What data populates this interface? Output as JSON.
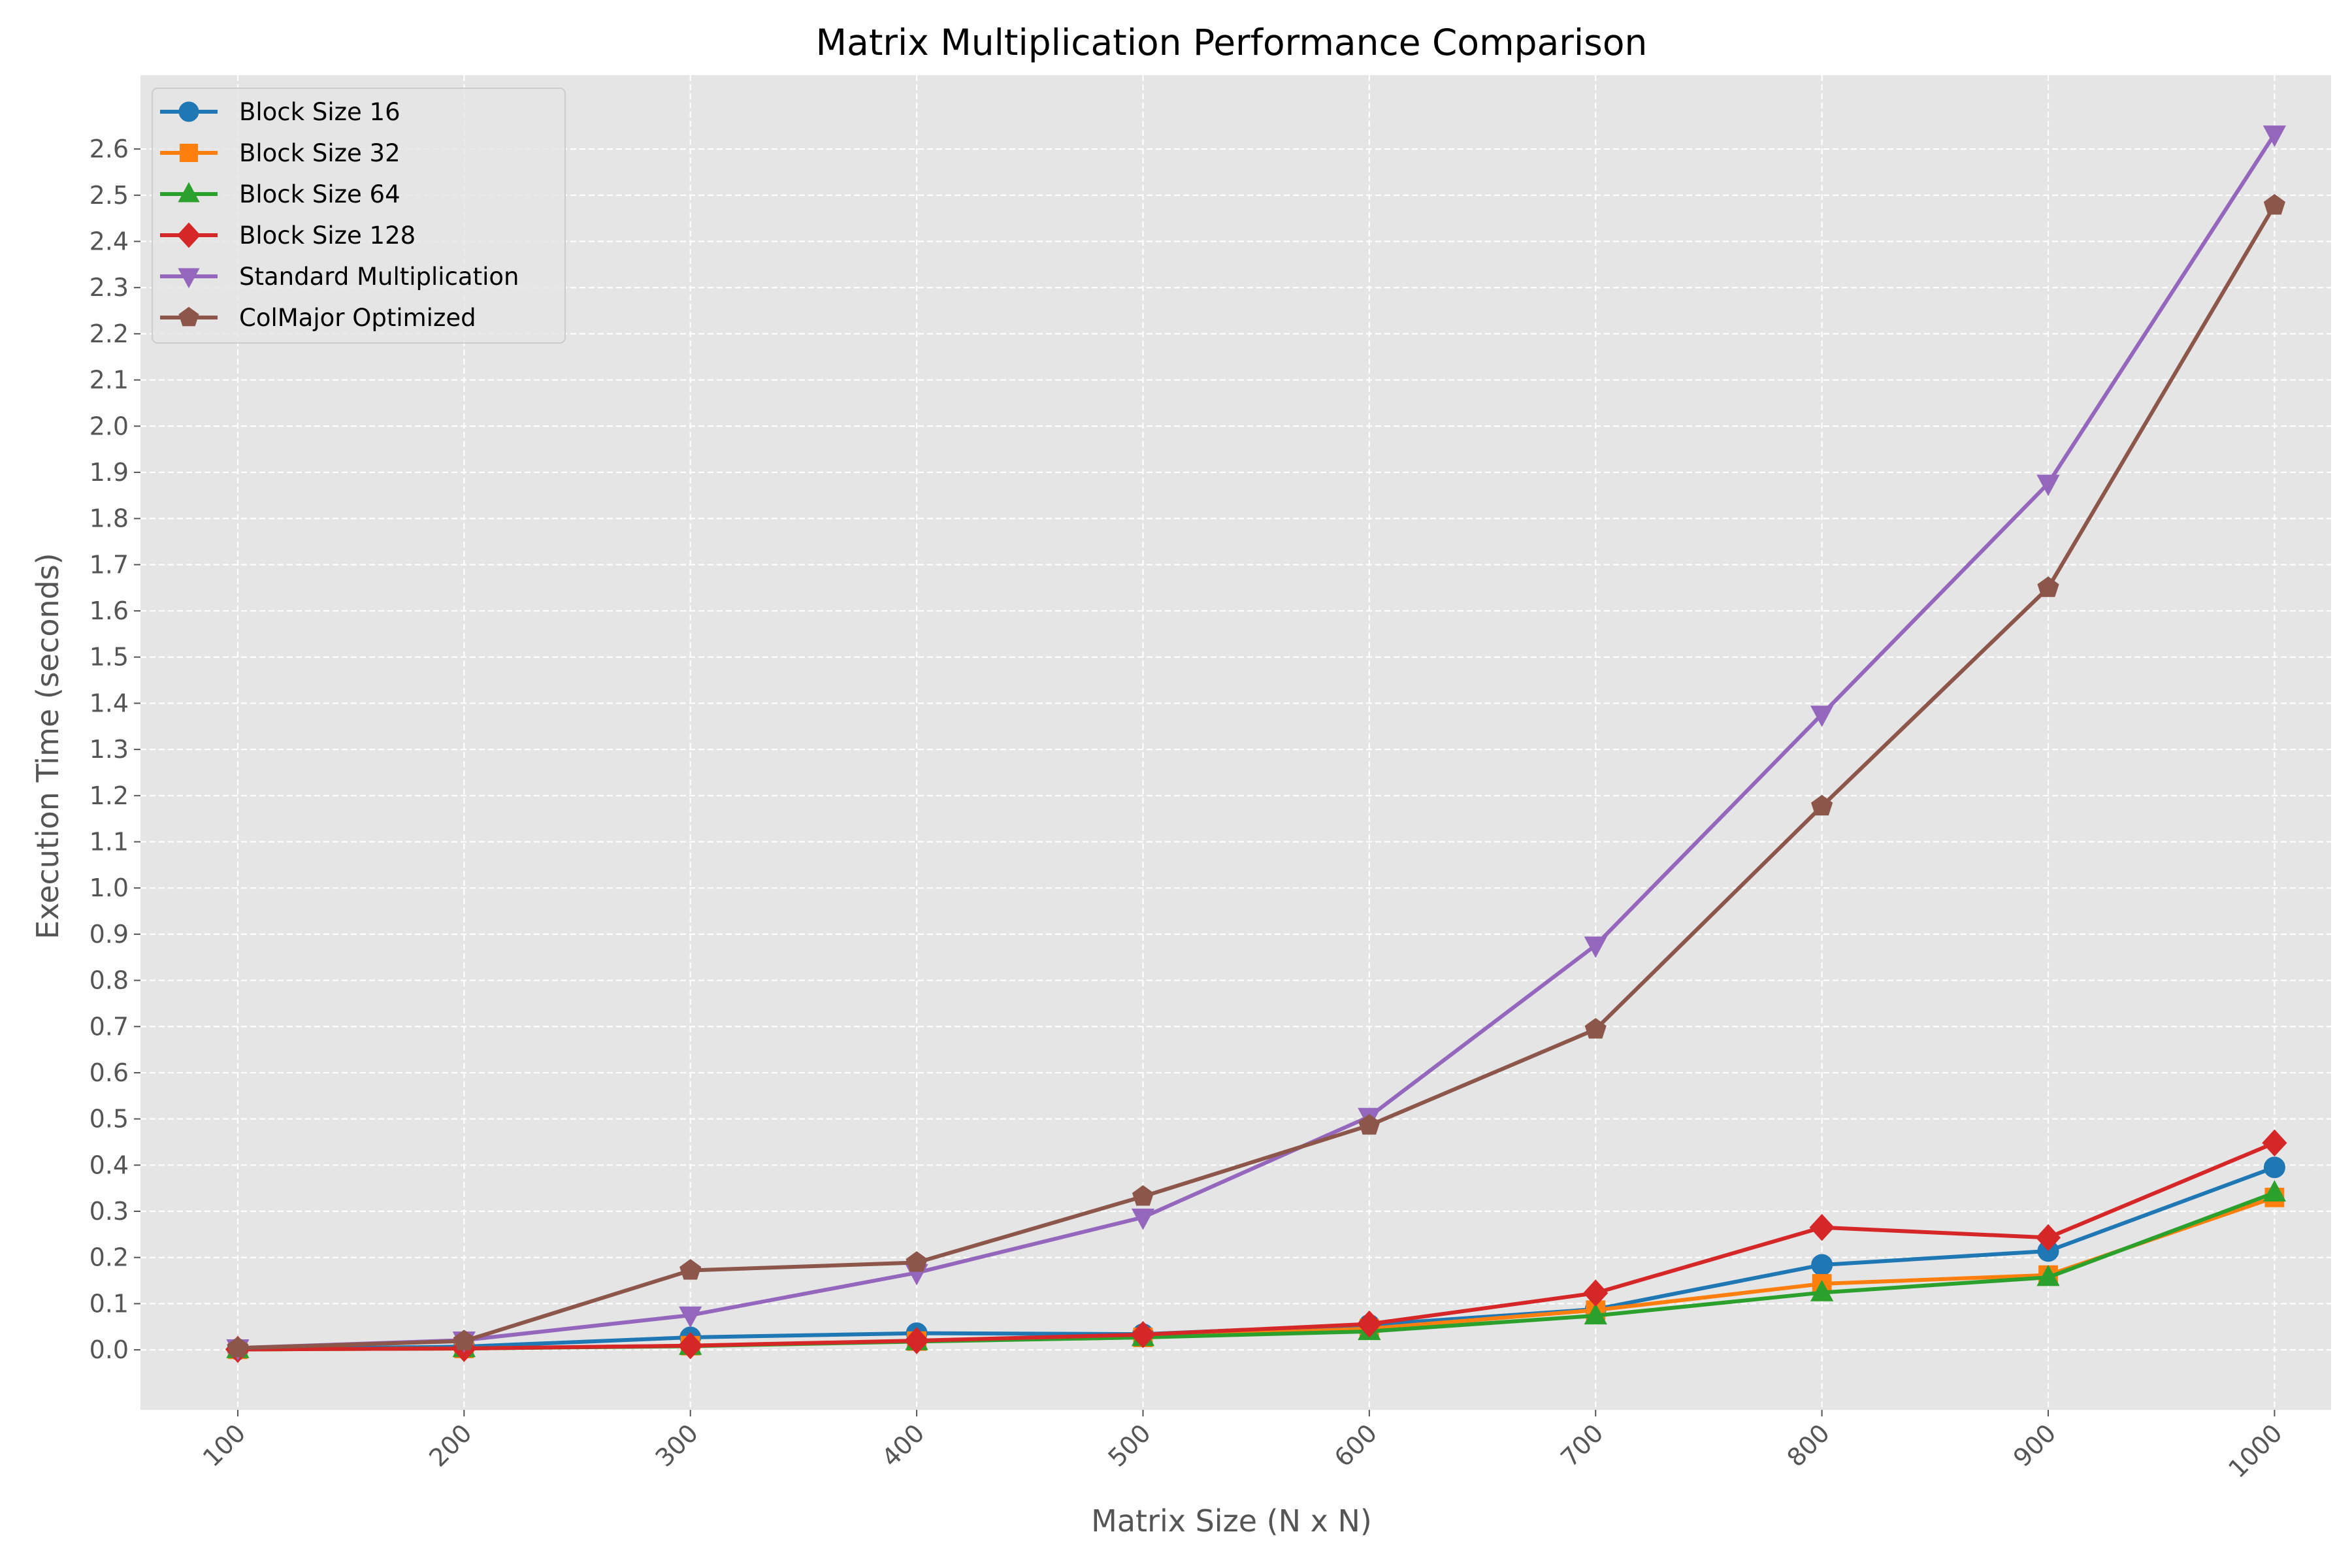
{
  "chart_data": {
    "type": "line",
    "title": "Matrix Multiplication Performance Comparison",
    "xlabel": "Matrix Size (N x N)",
    "ylabel": "Execution Time (seconds)",
    "x": [
      100,
      200,
      300,
      400,
      500,
      600,
      700,
      800,
      900,
      1000
    ],
    "x_tick_labels": [
      "100",
      "200",
      "300",
      "400",
      "500",
      "600",
      "700",
      "800",
      "900",
      "1000"
    ],
    "xlim": [
      57,
      1025
    ],
    "ylim": [
      -0.13,
      2.76
    ],
    "y_ticks": [
      0.0,
      0.1,
      0.2,
      0.3,
      0.4,
      0.5,
      0.6,
      0.7,
      0.8,
      0.9,
      1.0,
      1.1,
      1.2,
      1.3,
      1.4,
      1.5,
      1.6,
      1.7,
      1.8,
      1.9,
      2.0,
      2.1,
      2.2,
      2.3,
      2.4,
      2.5,
      2.6
    ],
    "y_tick_labels": [
      "0.0",
      "0.1",
      "0.2",
      "0.3",
      "0.4",
      "0.5",
      "0.6",
      "0.7",
      "0.8",
      "0.9",
      "1.0",
      "1.1",
      "1.2",
      "1.3",
      "1.4",
      "1.5",
      "1.6",
      "1.7",
      "1.8",
      "1.9",
      "2.0",
      "2.1",
      "2.2",
      "2.3",
      "2.4",
      "2.5",
      "2.6"
    ],
    "grid": true,
    "legend_position": "top-left",
    "background_color": "#e5e5e5",
    "series": [
      {
        "name": "Block Size 16",
        "color": "#1f77b4",
        "marker": "circle",
        "values": [
          0.001,
          0.007,
          0.027,
          0.036,
          0.034,
          0.054,
          0.088,
          0.184,
          0.214,
          0.395
        ]
      },
      {
        "name": "Block Size 32",
        "color": "#ff7f0e",
        "marker": "square",
        "values": [
          0.001,
          0.003,
          0.009,
          0.019,
          0.027,
          0.046,
          0.086,
          0.143,
          0.162,
          0.33
        ]
      },
      {
        "name": "Block Size 64",
        "color": "#2ca02c",
        "marker": "triangle-up",
        "values": [
          0.001,
          0.003,
          0.008,
          0.018,
          0.027,
          0.04,
          0.074,
          0.124,
          0.157,
          0.34
        ]
      },
      {
        "name": "Block Size 128",
        "color": "#d62728",
        "marker": "diamond",
        "values": [
          0.001,
          0.003,
          0.009,
          0.02,
          0.033,
          0.056,
          0.123,
          0.265,
          0.243,
          0.448
        ]
      },
      {
        "name": "Standard Multiplication",
        "color": "#9467bd",
        "marker": "triangle-down",
        "values": [
          0.004,
          0.021,
          0.075,
          0.167,
          0.287,
          0.505,
          0.876,
          1.376,
          1.876,
          2.632
        ]
      },
      {
        "name": "ColMajor Optimized",
        "color": "#8c564b",
        "marker": "pentagon",
        "values": [
          0.004,
          0.019,
          0.172,
          0.189,
          0.332,
          0.486,
          0.694,
          1.177,
          1.65,
          2.478
        ]
      }
    ]
  }
}
